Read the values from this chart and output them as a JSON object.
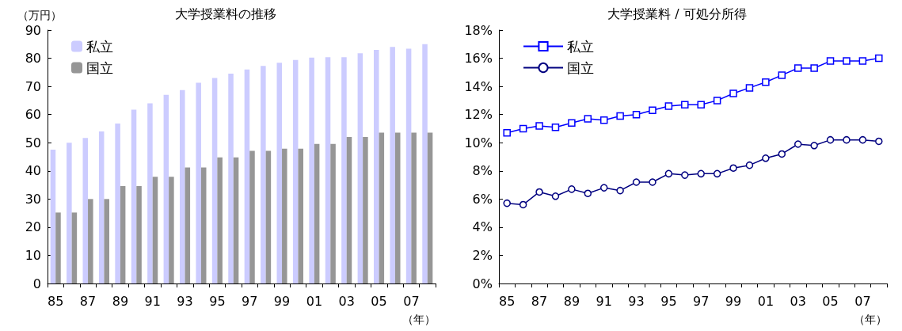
{
  "chart_data": [
    {
      "type": "bar",
      "title": "大学授業料の推移",
      "ylabel": "（万円）",
      "xlabel": "（年）",
      "categories": [
        "85",
        null,
        "87",
        null,
        "89",
        null,
        "91",
        null,
        "93",
        null,
        "95",
        null,
        "97",
        null,
        "99",
        null,
        "01",
        null,
        "03",
        null,
        "05",
        null,
        "07",
        null
      ],
      "series": [
        {
          "name": "私立",
          "color": "#ccccff",
          "values": [
            47.5,
            50,
            51.7,
            54,
            56.8,
            61.7,
            64,
            67,
            68.7,
            71.3,
            73,
            74.5,
            76,
            77.3,
            78.4,
            79.4,
            80.2,
            80.4,
            80.4,
            81.8,
            83,
            84,
            83.4,
            85
          ]
        },
        {
          "name": "国立",
          "color": "#969696",
          "values": [
            25.2,
            25.2,
            30,
            30,
            34.6,
            34.6,
            37.9,
            37.9,
            41.2,
            41.2,
            44.8,
            44.8,
            47.1,
            47.1,
            47.9,
            47.9,
            49.6,
            49.6,
            52,
            52,
            53.6,
            53.6,
            53.6,
            53.6
          ]
        }
      ],
      "ylim": [
        0,
        90
      ],
      "yticks": [
        0,
        10,
        20,
        30,
        40,
        50,
        60,
        70,
        80,
        90
      ],
      "grid": false,
      "legend": "top left"
    },
    {
      "type": "line",
      "title": "大学授業料 / 可処分所得",
      "xlabel": "（年）",
      "categories": [
        "85",
        null,
        "87",
        null,
        "89",
        null,
        "91",
        null,
        "93",
        null,
        "95",
        null,
        "97",
        null,
        "99",
        null,
        "01",
        null,
        "03",
        null,
        "05",
        null,
        "07",
        null
      ],
      "series": [
        {
          "name": "私立",
          "color": "#0000ff",
          "marker": "square",
          "values": [
            10.7,
            11.0,
            11.2,
            11.1,
            11.4,
            11.7,
            11.6,
            11.9,
            12.0,
            12.3,
            12.6,
            12.7,
            12.7,
            13.0,
            13.5,
            13.9,
            14.3,
            14.8,
            15.3,
            15.3,
            15.8,
            15.8,
            15.8,
            16.0
          ]
        },
        {
          "name": "国立",
          "color": "#000080",
          "marker": "circle",
          "values": [
            5.7,
            5.6,
            6.5,
            6.2,
            6.7,
            6.4,
            6.8,
            6.6,
            7.2,
            7.2,
            7.8,
            7.7,
            7.8,
            7.8,
            8.2,
            8.4,
            8.9,
            9.2,
            9.9,
            9.8,
            10.2,
            10.2,
            10.2,
            10.1
          ]
        }
      ],
      "ylim": [
        0,
        18
      ],
      "yticks": [
        {
          "value": 0,
          "label": "0%"
        },
        {
          "value": 2,
          "label": "2%"
        },
        {
          "value": 4,
          "label": "4%"
        },
        {
          "value": 6,
          "label": "6%"
        },
        {
          "value": 8,
          "label": "8%"
        },
        {
          "value": 10,
          "label": "10%"
        },
        {
          "value": 12,
          "label": "12%"
        },
        {
          "value": 14,
          "label": "14%"
        },
        {
          "value": 16,
          "label": "16%"
        },
        {
          "value": 18,
          "label": "18%"
        }
      ],
      "grid": false,
      "legend": "top left",
      "line_style": "solid"
    }
  ]
}
